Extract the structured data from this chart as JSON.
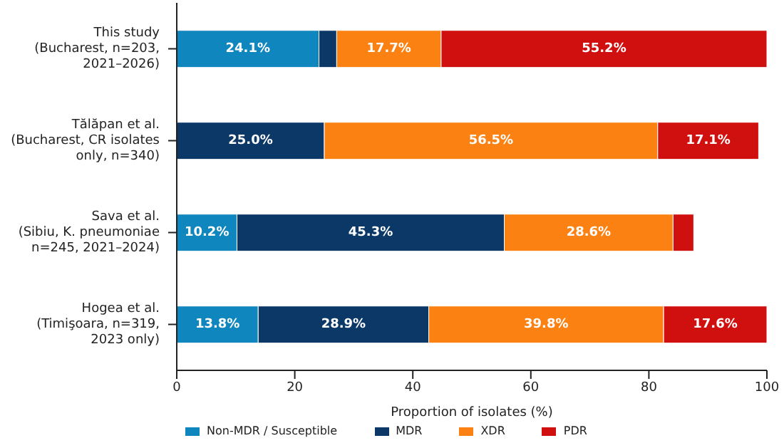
{
  "chart_data": {
    "type": "bar",
    "orientation": "horizontal",
    "stacked": true,
    "xlabel": "Proportion of isolates (%)",
    "categories": [
      "This study\n(Bucharest, n=203,\n2021–2026)",
      "Tălăpan et al.\n(Bucharest, CR isolates\nonly, n=340)",
      "Sava et al.\n(Sibiu, K. pneumoniae\nn=245, 2021–2024)",
      "Hogea et al.\n(Timişoara, n=319,\n2023 only)"
    ],
    "series": [
      {
        "name": "Non-MDR / Susceptible",
        "color": "#0f86bd",
        "values": [
          24.1,
          null,
          10.2,
          13.8
        ],
        "value_labels": [
          "24.1%",
          null,
          "10.2%",
          "13.8%"
        ]
      },
      {
        "name": "MDR",
        "color": "#0b3866",
        "values": [
          3.0,
          25.0,
          45.3,
          28.9
        ],
        "value_labels": [
          null,
          "25.0%",
          "45.3%",
          "28.9%"
        ]
      },
      {
        "name": "XDR",
        "color": "#fb8112",
        "values": [
          17.7,
          56.5,
          28.6,
          39.8
        ],
        "value_labels": [
          "17.7%",
          "56.5%",
          "28.6%",
          "39.8%"
        ]
      },
      {
        "name": "PDR",
        "color": "#d00f0f",
        "values": [
          55.2,
          17.1,
          3.5,
          17.6
        ],
        "value_labels": [
          "55.2%",
          "17.1%",
          null,
          "17.6%"
        ]
      }
    ],
    "xlim": [
      0,
      100
    ],
    "xticks": [
      0,
      20,
      40,
      60,
      80,
      100
    ],
    "grid": false,
    "legend": "bottom"
  }
}
